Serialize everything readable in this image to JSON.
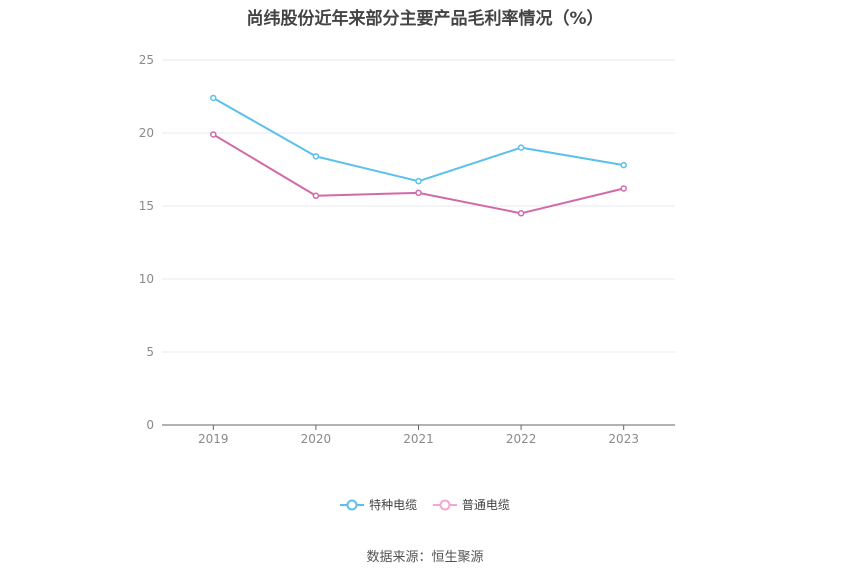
{
  "title": "尚纬股份近年来部分主要产品毛利率情况（%）",
  "source": "数据来源：恒生聚源",
  "colors": {
    "series1": "#5bc0eb",
    "series2": "#d16aa8",
    "grid": "#e6e8f0",
    "axis": "#666666"
  },
  "chart_data": {
    "type": "line",
    "title": "尚纬股份近年来部分主要产品毛利率情况（%）",
    "x": [
      "2019",
      "2020",
      "2021",
      "2022",
      "2023"
    ],
    "ylim": [
      0,
      25
    ],
    "yticks": [
      0,
      5,
      10,
      15,
      20,
      25
    ],
    "grid": true,
    "legend_position": "bottom",
    "series": [
      {
        "name": "特种电缆",
        "values": [
          22.4,
          18.4,
          16.7,
          19.0,
          17.8
        ]
      },
      {
        "name": "普通电缆",
        "values": [
          19.9,
          15.7,
          15.9,
          14.5,
          16.2
        ]
      }
    ]
  }
}
